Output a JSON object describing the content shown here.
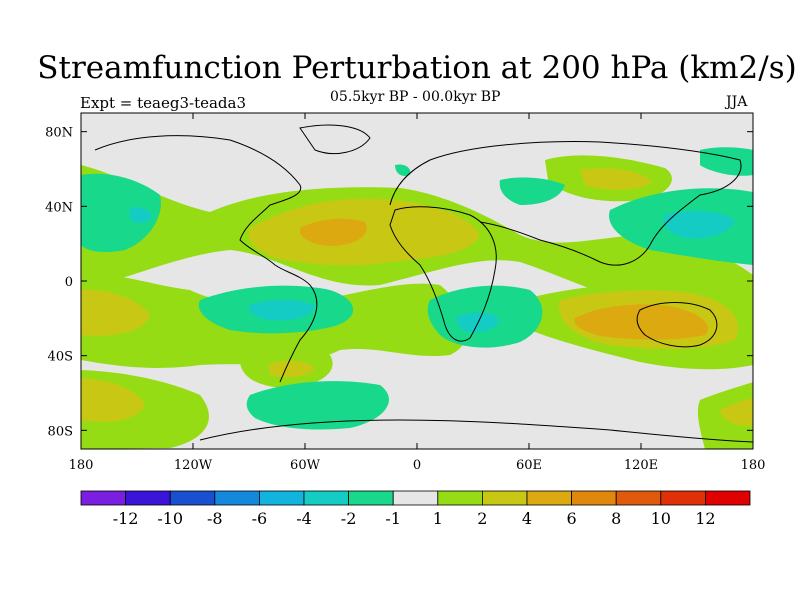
{
  "title": "Streamfunction Perturbation at 200 hPa (km2/s)",
  "subtitle": "05.5kyr BP - 00.0kyr BP",
  "experiment": "Expt = teaeg3-teada3",
  "season": "JJA",
  "map_axes": {
    "x_ticks": [
      "180",
      "120W",
      "60W",
      "0",
      "60E",
      "120E",
      "180"
    ],
    "y_ticks": [
      "80N",
      "40N",
      "0",
      "40S",
      "80S"
    ]
  },
  "colorbar": {
    "labels": [
      "-12",
      "-10",
      "-8",
      "-6",
      "-4",
      "-2",
      "-1",
      "1",
      "2",
      "4",
      "6",
      "8",
      "10",
      "12"
    ],
    "colors": [
      "#7a1ee0",
      "#3a14d8",
      "#1850d0",
      "#1488dc",
      "#10b4dc",
      "#14ccc4",
      "#18d88c",
      "#e6e6e6",
      "#96dc14",
      "#c8c814",
      "#dcaa10",
      "#e0880c",
      "#e05a0c",
      "#e03008",
      "#e00000"
    ]
  },
  "field_features": [
    {
      "region": "North Atlantic / Africa",
      "sign": "positive",
      "peak": 4
    },
    {
      "region": "South America",
      "sign": "negative",
      "peak": -4
    },
    {
      "region": "Southern Africa / Indian Ocean",
      "sign": "negative",
      "peak": -4
    },
    {
      "region": "Australia",
      "sign": "positive",
      "peak": 6
    },
    {
      "region": "NW Pacific / Japan",
      "sign": "negative",
      "peak": -4
    }
  ]
}
